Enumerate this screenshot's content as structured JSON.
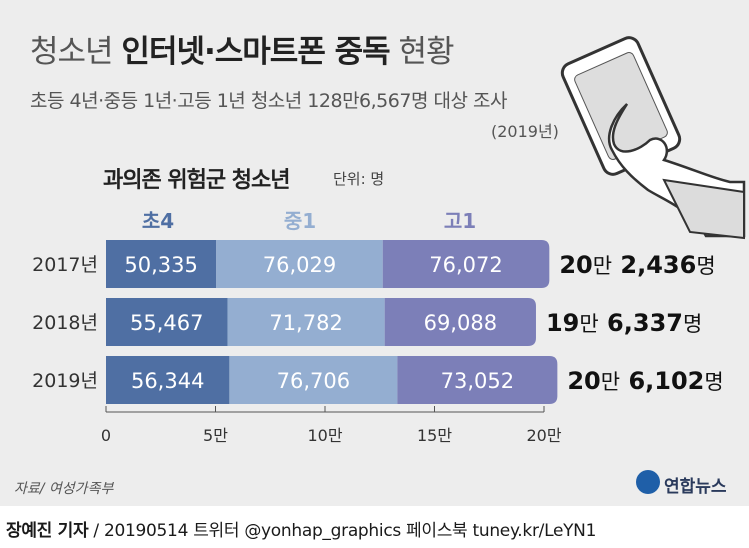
{
  "header": {
    "title_light_1": "청소년 ",
    "title_bold": "인터넷·스마트폰 중독",
    "title_light_2": " 현황",
    "subtitle": "초등 4년·중등 1년·고등 1년 청소년 128만6,567명 대상 조사",
    "year_note": "(2019년)"
  },
  "group": {
    "title": "과의존 위험군 청소년",
    "unit": "단위: 명"
  },
  "footer": {
    "source": "자료/ 여성가족부",
    "logo": "연합뉴스",
    "credit_name": "장예진 기자",
    "credit_rest": " / 20190514 트위터 @yonhap_graphics  페이스북 tuney.kr/LeYN1"
  },
  "chart_data": {
    "type": "bar",
    "orientation": "horizontal",
    "stacked": true,
    "categories": [
      "2017년",
      "2018년",
      "2019년"
    ],
    "series": [
      {
        "name": "초4",
        "color": "#4f6fa3",
        "values": [
          50335,
          55467,
          56344
        ],
        "labels": [
          "50,335",
          "55,467",
          "56,344"
        ]
      },
      {
        "name": "중1",
        "color": "#94aed1",
        "values": [
          76029,
          71782,
          76706
        ],
        "labels": [
          "76,029",
          "71,782",
          "76,706"
        ]
      },
      {
        "name": "고1",
        "color": "#7c7fb8",
        "values": [
          76072,
          69088,
          73052
        ],
        "labels": [
          "76,072",
          "69,088",
          "73,052"
        ]
      }
    ],
    "totals": [
      {
        "man": "20",
        "man_unit": "만",
        "rest": "2,436",
        "rest_unit": "명"
      },
      {
        "man": "19",
        "man_unit": "만",
        "rest": "6,337",
        "rest_unit": "명"
      },
      {
        "man": "20",
        "man_unit": "만",
        "rest": "6,102",
        "rest_unit": "명"
      }
    ],
    "xlim": [
      0,
      200000
    ],
    "xticks": [
      0,
      50000,
      100000,
      150000,
      200000
    ],
    "xtick_labels": [
      "0",
      "5만",
      "10만",
      "15만",
      "20만"
    ],
    "legend_position": "top",
    "grid": false
  }
}
